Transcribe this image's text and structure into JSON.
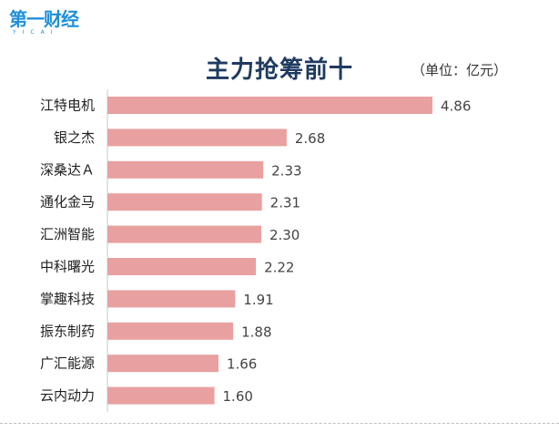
{
  "logo": {
    "main": "第一财经",
    "sub": "YICAI"
  },
  "chart_data": {
    "type": "bar",
    "orientation": "horizontal",
    "title": "主力抢筹前十",
    "unit": "（单位：亿元）",
    "categories": [
      "江特电机",
      "银之杰",
      "深桑达Ａ",
      "通化金马",
      "汇洲智能",
      "中科曙光",
      "掌趣科技",
      "振东制药",
      "广汇能源",
      "云内动力"
    ],
    "values": [
      4.86,
      2.68,
      2.33,
      2.31,
      2.3,
      2.22,
      1.91,
      1.88,
      1.66,
      1.6
    ],
    "value_labels": [
      "4.86",
      "2.68",
      "2.33",
      "2.31",
      "2.30",
      "2.22",
      "1.91",
      "1.88",
      "1.66",
      "1.60"
    ],
    "xlim": [
      0,
      4.86
    ],
    "bar_color": "#e8a0a0",
    "grid": false,
    "legend": "none"
  }
}
